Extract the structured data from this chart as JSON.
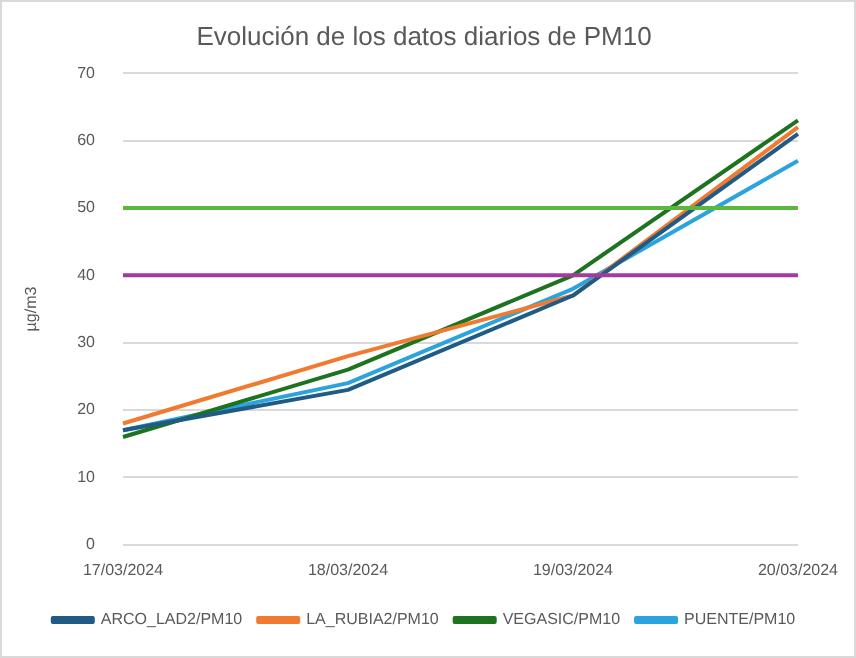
{
  "chart_data": {
    "type": "line",
    "title": "Evolución de los datos diarios de PM10",
    "ylabel": "µg/m3",
    "categories": [
      "17/03/2024",
      "18/03/2024",
      "19/03/2024",
      "20/03/2024"
    ],
    "series": [
      {
        "name": "ARCO_LAD2/PM10",
        "color": "#1f5b85",
        "values": [
          17,
          23,
          37,
          61
        ]
      },
      {
        "name": "LA_RUBIA2/PM10",
        "color": "#f07a30",
        "values": [
          18,
          28,
          37,
          62
        ]
      },
      {
        "name": "VEGASIC/PM10",
        "color": "#1e7320",
        "values": [
          16,
          26,
          40,
          63
        ]
      },
      {
        "name": "PUENTE/PM10",
        "color": "#2ba3dc",
        "values": [
          17,
          24,
          38,
          57
        ]
      }
    ],
    "ylim": [
      0,
      70
    ],
    "yticks": [
      0,
      10,
      20,
      30,
      40,
      50,
      60,
      70
    ],
    "grid": "y",
    "legend": "bottom",
    "marker": "none",
    "line_style": "solid",
    "ref_lines": [
      {
        "axis": "y",
        "value": 50,
        "color": "#5cb83a"
      },
      {
        "axis": "y",
        "value": 40,
        "color": "#a43aa0"
      }
    ]
  }
}
